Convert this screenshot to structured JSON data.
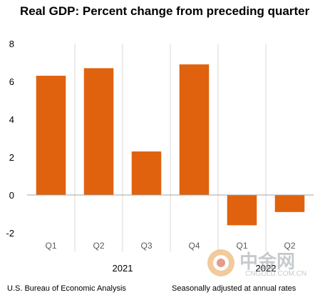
{
  "title": "Real GDP:  Percent change from preceding quarter",
  "chart_data": {
    "type": "bar",
    "categories": [
      "Q1",
      "Q2",
      "Q3",
      "Q4",
      "Q1",
      "Q2"
    ],
    "years": [
      {
        "label": "2021",
        "start": 0,
        "end": 3
      },
      {
        "label": "2022",
        "start": 4,
        "end": 5
      }
    ],
    "values": [
      6.3,
      6.7,
      2.3,
      6.9,
      -1.6,
      -0.9
    ],
    "ylim": [
      -2,
      8
    ],
    "yticks": [
      -2,
      0,
      2,
      4,
      6,
      8
    ],
    "bar_color": "#e0620f",
    "grid": false
  },
  "footer": {
    "source": "U.S. Bureau of Economic Analysis",
    "note": "Seasonally adjusted at annual rates"
  },
  "watermark": {
    "text": "中金网",
    "url": "CNGOLD.COM.CN"
  }
}
